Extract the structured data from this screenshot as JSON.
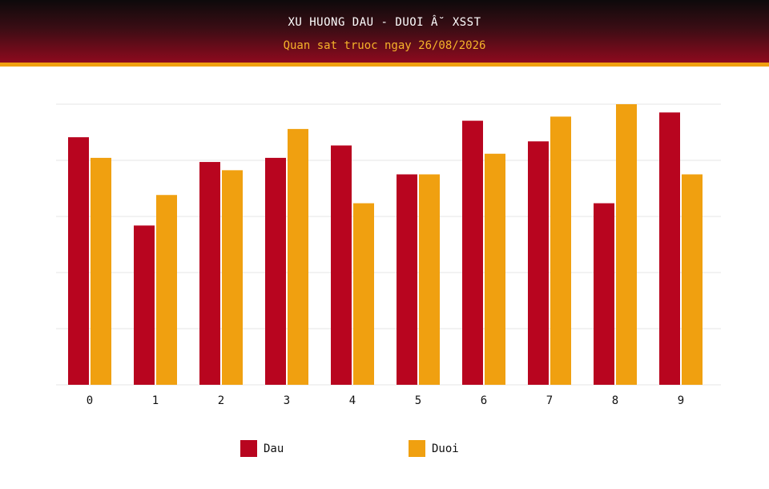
{
  "header": {
    "title": "XU HUONG DAU - DUOI Â˘ XSST",
    "subtitle": "Quan sat truoc ngay 26/08/2026"
  },
  "colors": {
    "dau": "#b8051f",
    "duoi": "#f0a010",
    "grid": "#e6e6e6"
  },
  "legend": {
    "dau_label": "Dau",
    "duoi_label": "Duoi"
  },
  "chart_data": {
    "type": "bar",
    "categories": [
      "0",
      "1",
      "2",
      "3",
      "4",
      "5",
      "6",
      "7",
      "8",
      "9"
    ],
    "series": [
      {
        "name": "Dau",
        "values": [
          30,
          19.3,
          27,
          27.5,
          29,
          25.5,
          32,
          29.5,
          22,
          33
        ]
      },
      {
        "name": "Duoi",
        "values": [
          27.5,
          23,
          26,
          31,
          22,
          25.5,
          28,
          32.5,
          34,
          25.5
        ]
      }
    ],
    "ylim": [
      0,
      34
    ],
    "grid": true,
    "legend_position": "bottom"
  }
}
